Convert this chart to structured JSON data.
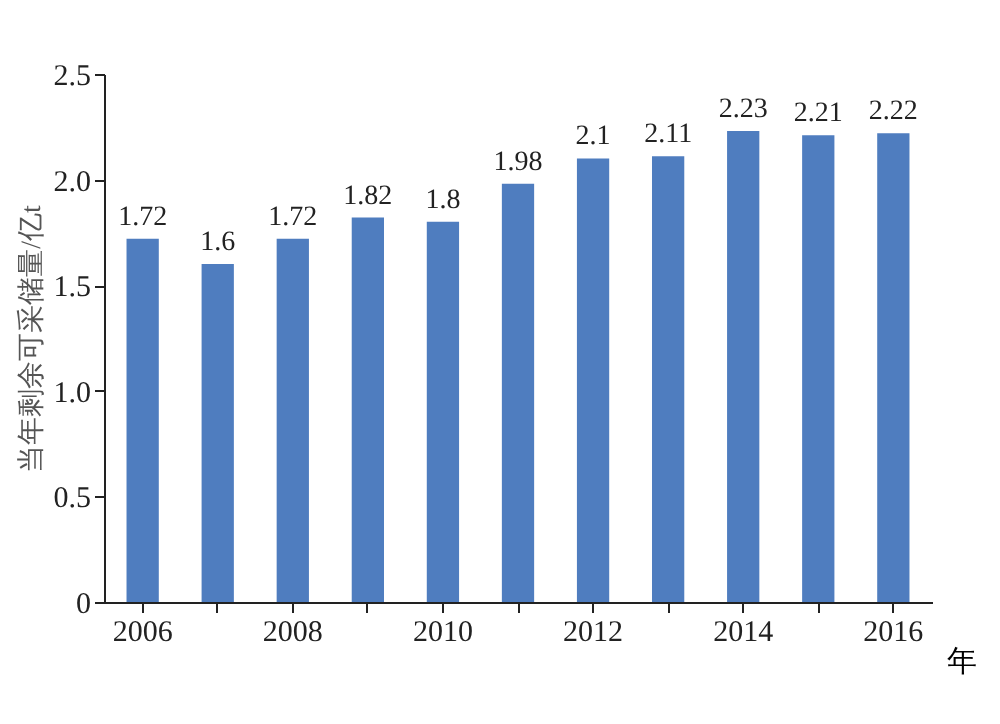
{
  "chart_data": {
    "type": "bar",
    "xlabel": "年",
    "ylabel": "当年剩余可采储量/亿t",
    "categories": [
      "2006",
      null,
      "2008",
      null,
      "2010",
      null,
      "2012",
      null,
      "2014",
      null,
      "2016"
    ],
    "values": [
      1.72,
      1.6,
      1.72,
      1.82,
      1.8,
      1.98,
      2.1,
      2.11,
      2.23,
      2.21,
      2.22
    ],
    "color": "#4f7dbf",
    "data_labels": true,
    "ylim": [
      0,
      2.5
    ],
    "yticks": [
      0,
      0.5,
      {
        "value": 1,
        "label": "1.0"
      },
      1.5,
      {
        "value": 2,
        "label": "2.0"
      },
      2.5
    ],
    "grid": false
  }
}
